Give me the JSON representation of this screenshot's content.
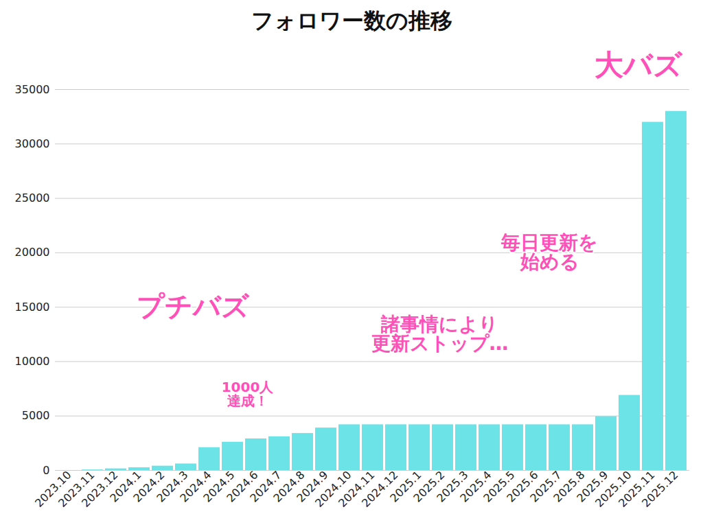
{
  "chart_data": {
    "type": "bar",
    "title": "フォロワー数の推移",
    "categories": [
      "2023.10",
      "2023.11",
      "2023.12",
      "2024.1",
      "2024.2",
      "2024.3",
      "2024.4",
      "2024.5",
      "2024.6",
      "2024.7",
      "2024.8",
      "2024.9",
      "2024.10",
      "2024.11",
      "2024.12",
      "2025.1",
      "2025.2",
      "2025.3",
      "2025.4",
      "2025.5",
      "2025.6",
      "2025.7",
      "2025.8",
      "2025.9",
      "2025.10",
      "2025.11",
      "2025.12"
    ],
    "values": [
      0,
      50,
      150,
      250,
      400,
      600,
      2100,
      2600,
      2900,
      3100,
      3400,
      3900,
      4200,
      4200,
      4200,
      4200,
      4200,
      4200,
      4200,
      4200,
      4200,
      4200,
      4200,
      4950,
      6900,
      32000,
      33000
    ],
    "color": "#6ce3e6",
    "ylim": [
      0,
      35000
    ],
    "yticks": [
      0,
      5000,
      10000,
      15000,
      20000,
      25000,
      30000,
      35000
    ],
    "grid": true,
    "annotations": [
      "プチバズ",
      "1000人\n達成！",
      "諸事情により\n更新ストップ…",
      "毎日更新を\n始める",
      "大バズ"
    ]
  }
}
